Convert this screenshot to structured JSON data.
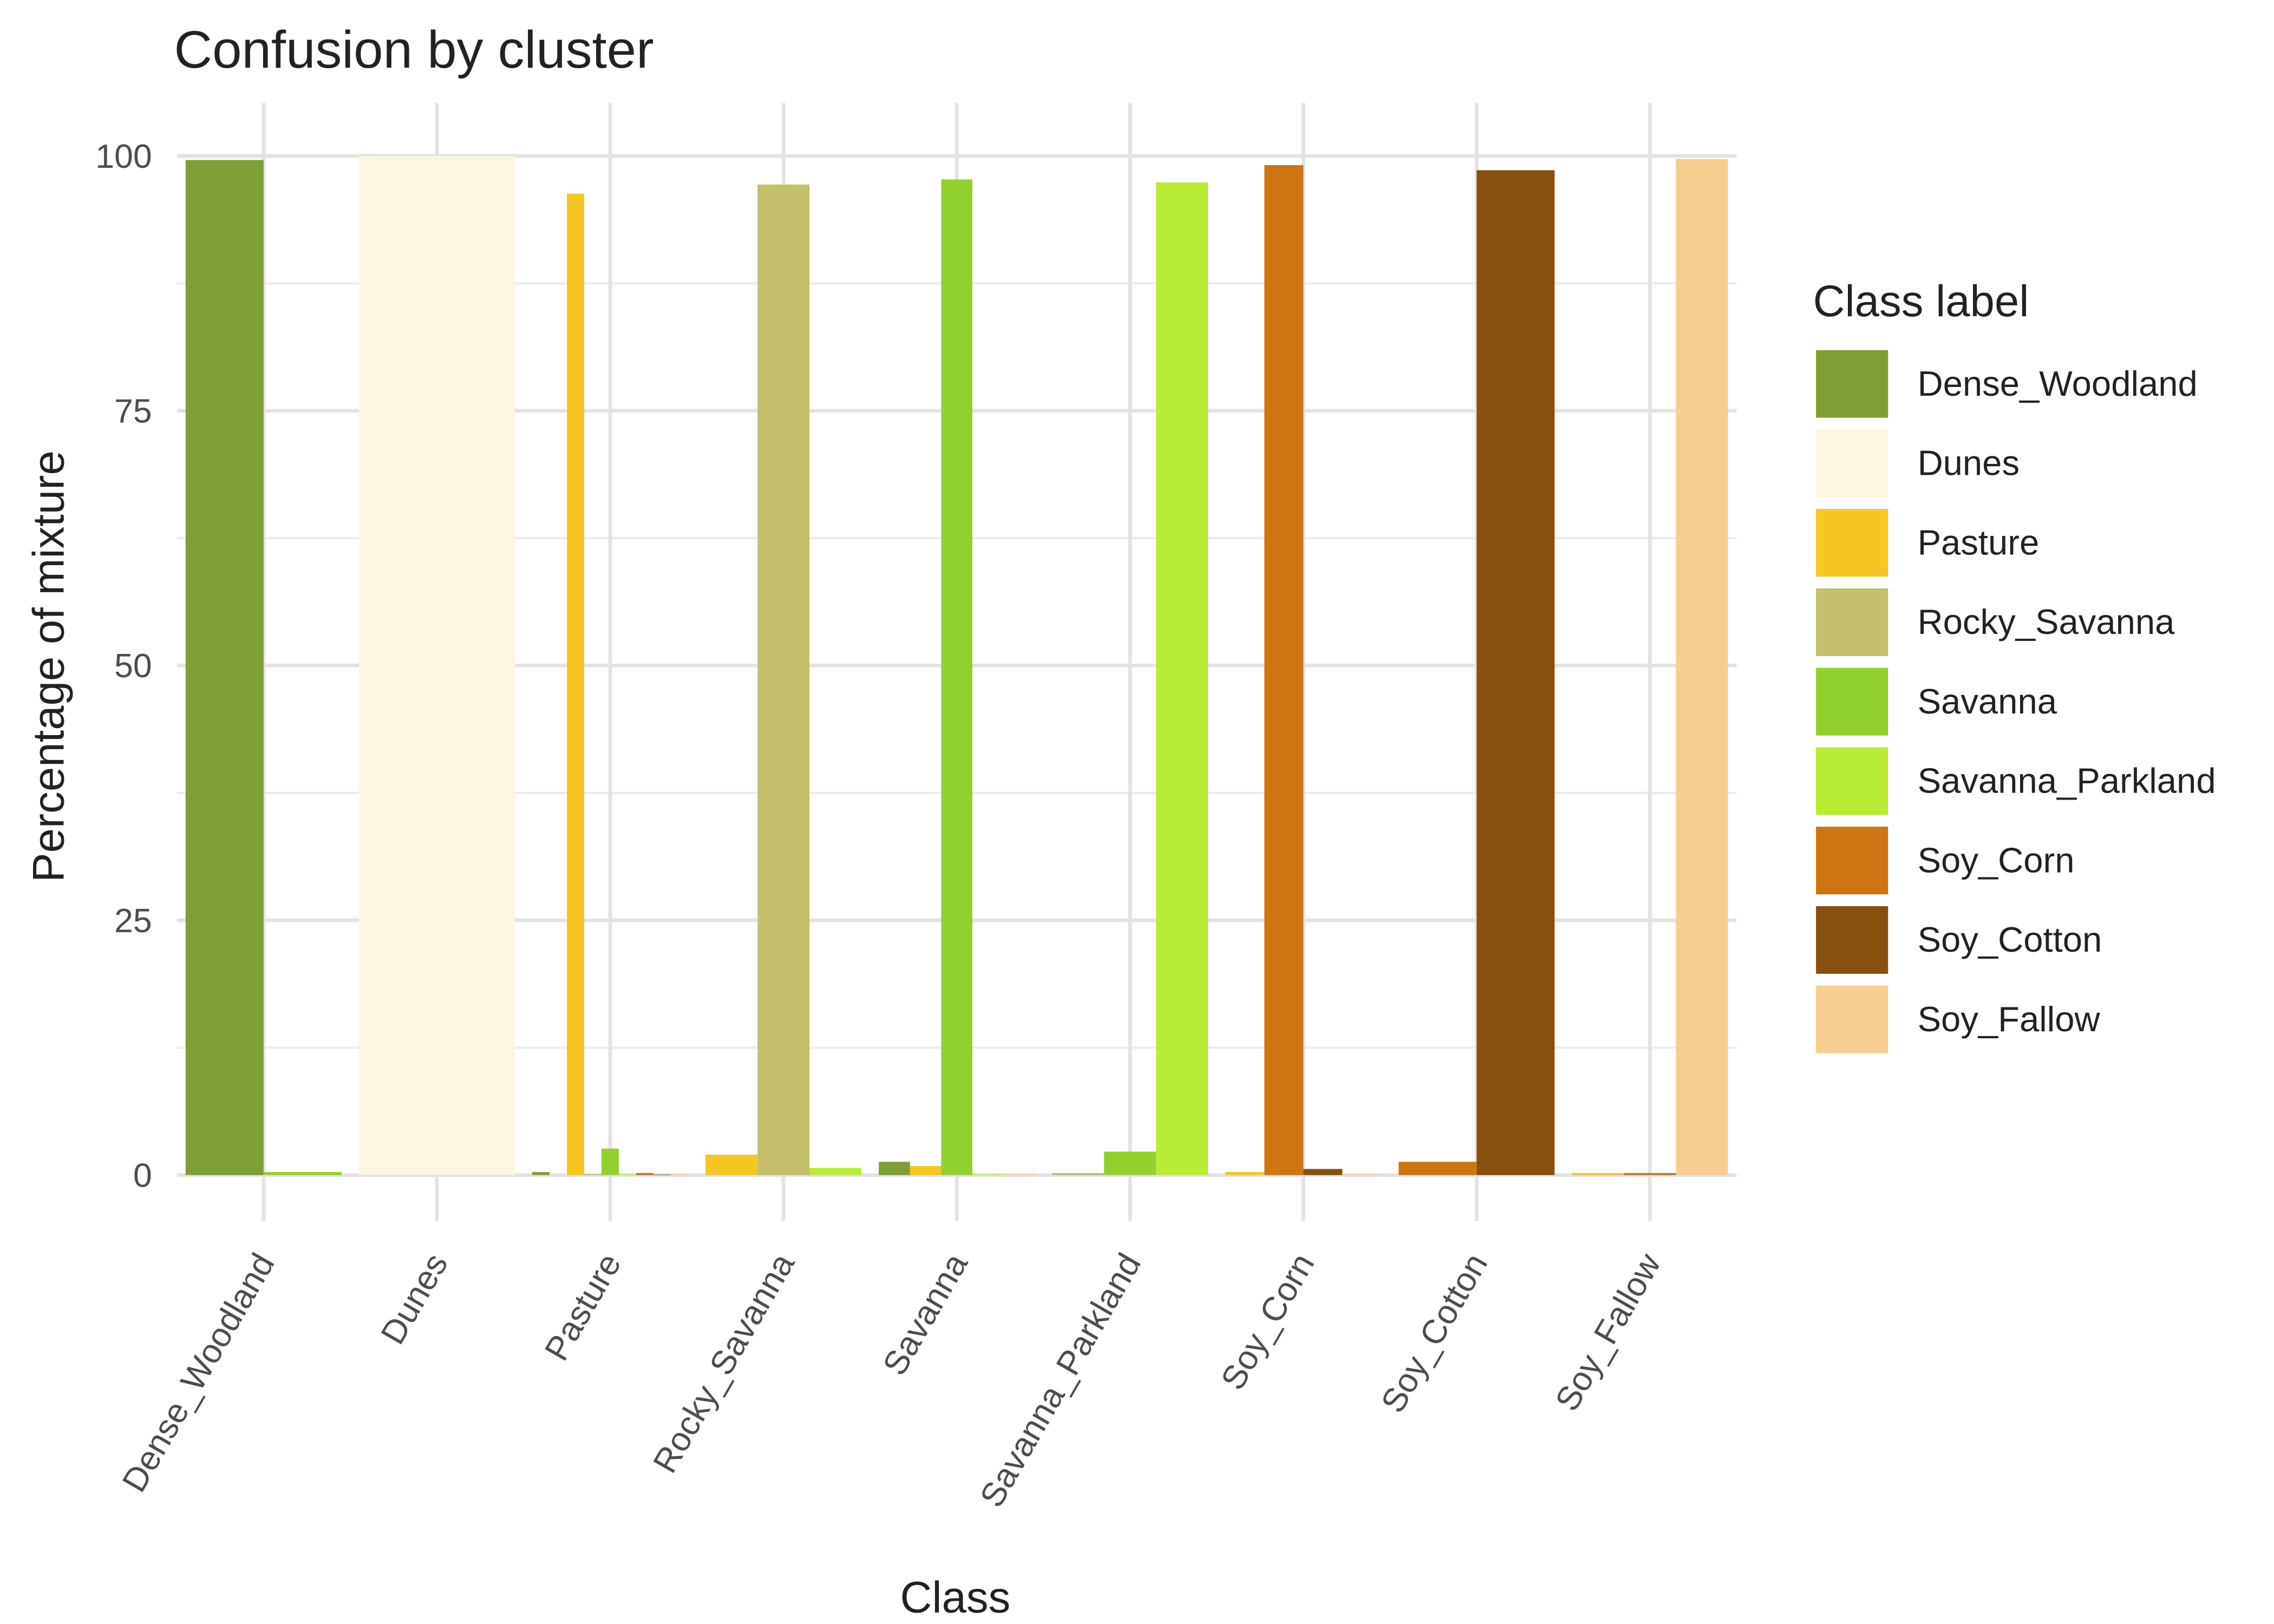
{
  "chart_data": {
    "type": "bar",
    "title": "Confusion by cluster",
    "x_label": "Class",
    "y_label": "Percentage of mixture",
    "legend_title": "Class label",
    "categories": [
      "Dense_Woodland",
      "Dunes",
      "Pasture",
      "Rocky_Savanna",
      "Savanna",
      "Savanna_Parkland",
      "Soy_Corn",
      "Soy_Cotton",
      "Soy_Fallow"
    ],
    "series": [
      {
        "name": "Dense_Woodland",
        "color": "#7f9f35",
        "values": [
          99.6,
          null,
          0.3,
          null,
          1.3,
          null,
          null,
          null,
          null
        ]
      },
      {
        "name": "Dunes",
        "color": "#fdf6e0",
        "values": [
          null,
          100,
          0,
          null,
          null,
          null,
          null,
          null,
          null
        ]
      },
      {
        "name": "Pasture",
        "color": "#f6c625",
        "values": [
          null,
          null,
          96.3,
          2.0,
          0.9,
          null,
          0.3,
          null,
          0.2
        ]
      },
      {
        "name": "Rocky_Savanna",
        "color": "#c4bf6a",
        "values": [
          null,
          null,
          0.1,
          97.2,
          null,
          0.2,
          null,
          null,
          null
        ]
      },
      {
        "name": "Savanna",
        "color": "#92d030",
        "values": [
          0.3,
          null,
          2.6,
          null,
          97.7,
          2.3,
          null,
          null,
          null
        ]
      },
      {
        "name": "Savanna_Parkland",
        "color": "#b9ec35",
        "values": [
          null,
          null,
          0.1,
          0.7,
          0.1,
          97.4,
          null,
          null,
          null
        ]
      },
      {
        "name": "Soy_Corn",
        "color": "#cc7512",
        "values": [
          null,
          null,
          0.2,
          null,
          null,
          null,
          99.1,
          1.3,
          0.2
        ]
      },
      {
        "name": "Soy_Cotton",
        "color": "#87500f",
        "values": [
          null,
          null,
          0.05,
          null,
          null,
          null,
          0.6,
          98.6,
          null
        ]
      },
      {
        "name": "Soy_Fallow",
        "color": "#f8cd92",
        "values": [
          null,
          null,
          0.1,
          null,
          0.1,
          null,
          0.1,
          null,
          99.7
        ]
      }
    ],
    "ylim": [
      -4.5,
      105.2
    ],
    "yticks": [
      0,
      25,
      50,
      75,
      100
    ],
    "grid": true,
    "legend": "right"
  }
}
